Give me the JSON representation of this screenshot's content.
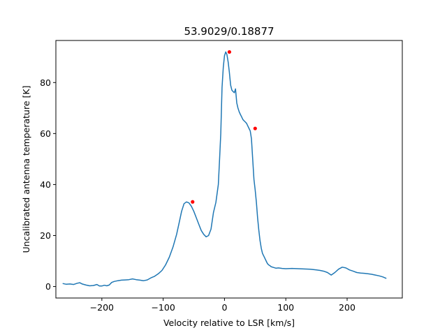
{
  "chart_data": {
    "type": "line",
    "title": "53.9029/0.18877",
    "xlabel": "Velocity relative to LSR [km/s]",
    "ylabel": "Uncalibrated antenna temperature [K]",
    "xlim": [
      -275,
      290
    ],
    "ylim": [
      -4.5,
      96.5
    ],
    "xticks": [
      -200,
      -100,
      0,
      100,
      200
    ],
    "yticks": [
      0,
      20,
      40,
      60,
      80
    ],
    "grid": false,
    "legend": "none",
    "series": [
      {
        "color": "#1f77b4",
        "x": [
          -264,
          -258,
          -252,
          -246,
          -240,
          -236,
          -232,
          -226,
          -220,
          -214,
          -208,
          -204,
          -200,
          -196,
          -192,
          -188,
          -184,
          -180,
          -174,
          -168,
          -162,
          -156,
          -150,
          -144,
          -138,
          -132,
          -126,
          -120,
          -114,
          -108,
          -102,
          -96,
          -90,
          -84,
          -78,
          -74,
          -70,
          -66,
          -62,
          -58,
          -54,
          -50,
          -46,
          -42,
          -38,
          -34,
          -30,
          -26,
          -22,
          -18,
          -14,
          -10,
          -8,
          -6,
          -4,
          -2,
          0,
          2,
          4,
          6,
          8,
          10,
          12,
          14,
          16,
          18,
          20,
          22,
          24,
          26,
          28,
          30,
          32,
          34,
          36,
          38,
          40,
          42,
          44,
          46,
          48,
          50,
          52,
          54,
          56,
          58,
          60,
          62,
          64,
          66,
          68,
          70,
          72,
          74,
          76,
          80,
          84,
          88,
          94,
          100,
          110,
          120,
          130,
          140,
          150,
          156,
          162,
          168,
          174,
          180,
          186,
          192,
          198,
          204,
          210,
          216,
          222,
          228,
          234,
          240,
          246,
          252,
          258,
          264
        ],
        "values": [
          1.2,
          0.9,
          1.0,
          0.8,
          1.3,
          1.5,
          1.0,
          0.6,
          0.3,
          0.4,
          0.8,
          0.2,
          0.2,
          0.5,
          0.3,
          0.6,
          1.6,
          2.0,
          2.3,
          2.5,
          2.6,
          2.7,
          3.0,
          2.7,
          2.5,
          2.3,
          2.6,
          3.4,
          4.0,
          5.0,
          6.3,
          8.5,
          11.5,
          15.5,
          20.5,
          25,
          29.5,
          32.5,
          33.2,
          32.8,
          31.5,
          29.5,
          27,
          24.5,
          22,
          20.5,
          19.5,
          20,
          22.5,
          29,
          33,
          40,
          50,
          60,
          78,
          86,
          90.5,
          92,
          91,
          88,
          84,
          79,
          77,
          76.5,
          76,
          77.5,
          72,
          70,
          68.5,
          67.5,
          66.5,
          65.5,
          65,
          64.5,
          64,
          63,
          62,
          61,
          58,
          50,
          42,
          38,
          33,
          27,
          22,
          18,
          15,
          13,
          12,
          11,
          10,
          9,
          8.5,
          8.2,
          7.8,
          7.5,
          7.2,
          7.3,
          7.1,
          7.0,
          7.1,
          7.0,
          6.9,
          6.8,
          6.5,
          6.3,
          6.0,
          5.5,
          4.5,
          5.5,
          6.8,
          7.6,
          7.3,
          6.5,
          6.0,
          5.5,
          5.3,
          5.2,
          5.0,
          4.8,
          4.5,
          4.2,
          3.8,
          3.2
        ]
      }
    ],
    "peaks": {
      "color": "#ff0000",
      "x": [
        -52,
        8,
        50
      ],
      "values": [
        33.2,
        92,
        62
      ]
    }
  }
}
